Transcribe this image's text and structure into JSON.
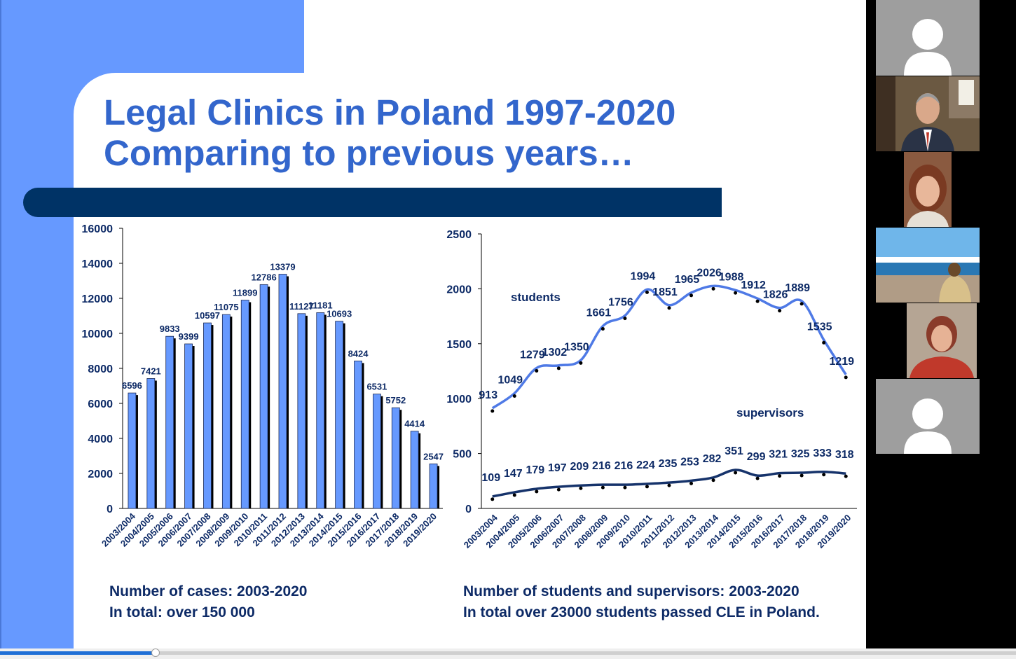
{
  "slide": {
    "title_line1": "Legal Clinics in Poland 1997-2020",
    "title_line2": "Comparing to previous years…",
    "caption_left_line1": "Number of cases: 2003-2020",
    "caption_left_line2": "In total: over 150 000",
    "caption_right_line1": "Number of students and supervisors: 2003-2020",
    "caption_right_line2": "In total over 23000 students passed CLE in Poland."
  },
  "colors": {
    "accent_blue": "#6699ff",
    "title_blue": "#3366cc",
    "navy": "#003366",
    "bar_fill": "#6699ff",
    "students_line": "#4f7ae6",
    "supervisors_line": "#16336b",
    "label_navy": "#0d2a66"
  },
  "chart_data": [
    {
      "type": "bar",
      "title": "",
      "categories": [
        "2003/2004",
        "2004/2005",
        "2005/2006",
        "2006/2007",
        "2007/2008",
        "2008/2009",
        "2009/2010",
        "2010/2011",
        "2011/2012",
        "2012/2013",
        "2013/2014",
        "2014/2015",
        "2015/2016",
        "2016/2017",
        "2017/2018",
        "2018/2019",
        "2019/2020"
      ],
      "values": [
        6596,
        7421,
        9833,
        9399,
        10597,
        11075,
        11899,
        12786,
        13379,
        11127,
        11181,
        10693,
        8424,
        6531,
        5752,
        4414,
        2547
      ],
      "ylim": [
        0,
        16000
      ],
      "yticks": [
        0,
        2000,
        4000,
        6000,
        8000,
        10000,
        12000,
        14000,
        16000
      ],
      "xlabel": "",
      "ylabel": "",
      "grid": false
    },
    {
      "type": "line",
      "title": "",
      "categories": [
        "2003/2004",
        "2004/2005",
        "2005/2006",
        "2006/2007",
        "2007/2008",
        "2008/2009",
        "2009/2010",
        "2010/2011",
        "2011/2012",
        "2012/2013",
        "2013/2014",
        "2014/2015",
        "2015/2016",
        "2016/2017",
        "2017/2018",
        "2018/2019",
        "2019/2020"
      ],
      "series": [
        {
          "name": "students",
          "values": [
            913,
            1049,
            1279,
            1302,
            1350,
            1661,
            1756,
            1994,
            1851,
            1965,
            2026,
            1988,
            1912,
            1826,
            1889,
            1535,
            1219
          ]
        },
        {
          "name": "supervisors",
          "values": [
            109,
            147,
            179,
            197,
            209,
            216,
            216,
            224,
            235,
            253,
            282,
            351,
            299,
            321,
            325,
            333,
            318
          ]
        }
      ],
      "ylim": [
        0,
        2500
      ],
      "yticks": [
        0,
        500,
        1000,
        1500,
        2000,
        2500
      ],
      "xlabel": "",
      "ylabel": "",
      "grid": false
    }
  ],
  "video_progress": 0.153,
  "participants": [
    {
      "name": "participant-1",
      "kind": "avatar-placeholder"
    },
    {
      "name": "participant-2",
      "kind": "video"
    },
    {
      "name": "participant-3",
      "kind": "video"
    },
    {
      "name": "participant-4",
      "kind": "video"
    },
    {
      "name": "participant-5",
      "kind": "video"
    },
    {
      "name": "participant-6",
      "kind": "avatar-placeholder"
    }
  ]
}
